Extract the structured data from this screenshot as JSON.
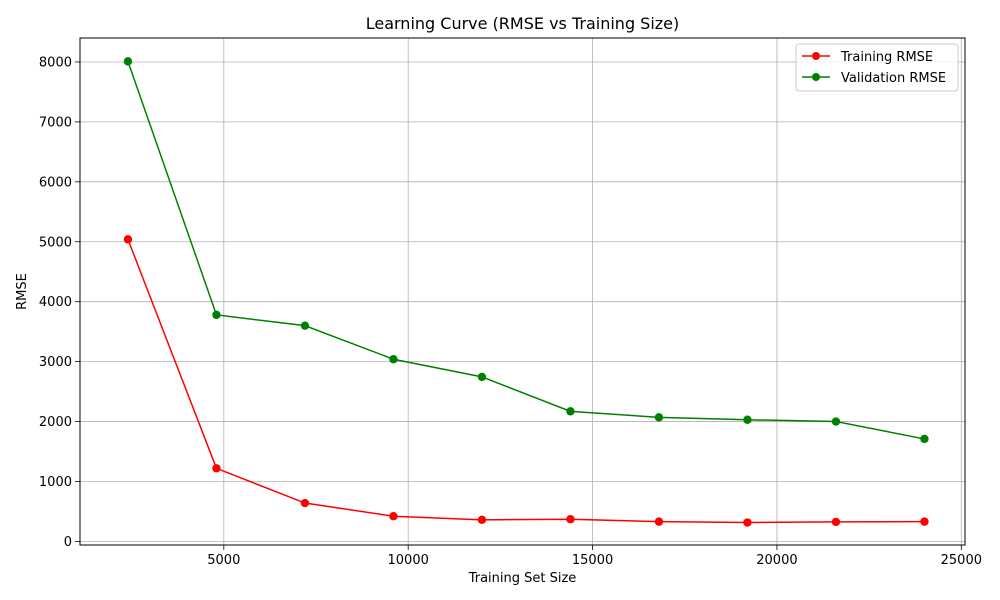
{
  "chart_data": {
    "type": "line",
    "title": "Learning Curve (RMSE vs Training Size)",
    "xlabel": "Training Set Size",
    "ylabel": "RMSE",
    "xlim": [
      1100,
      25100
    ],
    "ylim": [
      -60,
      8400
    ],
    "xticks": [
      5000,
      10000,
      15000,
      20000,
      25000
    ],
    "yticks": [
      0,
      1000,
      2000,
      3000,
      4000,
      5000,
      6000,
      7000,
      8000
    ],
    "grid": true,
    "legend_position": "top-right",
    "x": [
      2400,
      4800,
      7200,
      9600,
      12000,
      14400,
      16800,
      19200,
      21600,
      24000
    ],
    "series": [
      {
        "name": "Training RMSE",
        "color": "#ff0000",
        "marker": "circle",
        "values": [
          5040,
          1220,
          640,
          420,
          360,
          370,
          330,
          315,
          325,
          330
        ]
      },
      {
        "name": "Validation RMSE",
        "color": "#008000",
        "marker": "circle",
        "values": [
          8010,
          3780,
          3600,
          3040,
          2745,
          2170,
          2070,
          2030,
          2000,
          1710
        ]
      }
    ]
  }
}
